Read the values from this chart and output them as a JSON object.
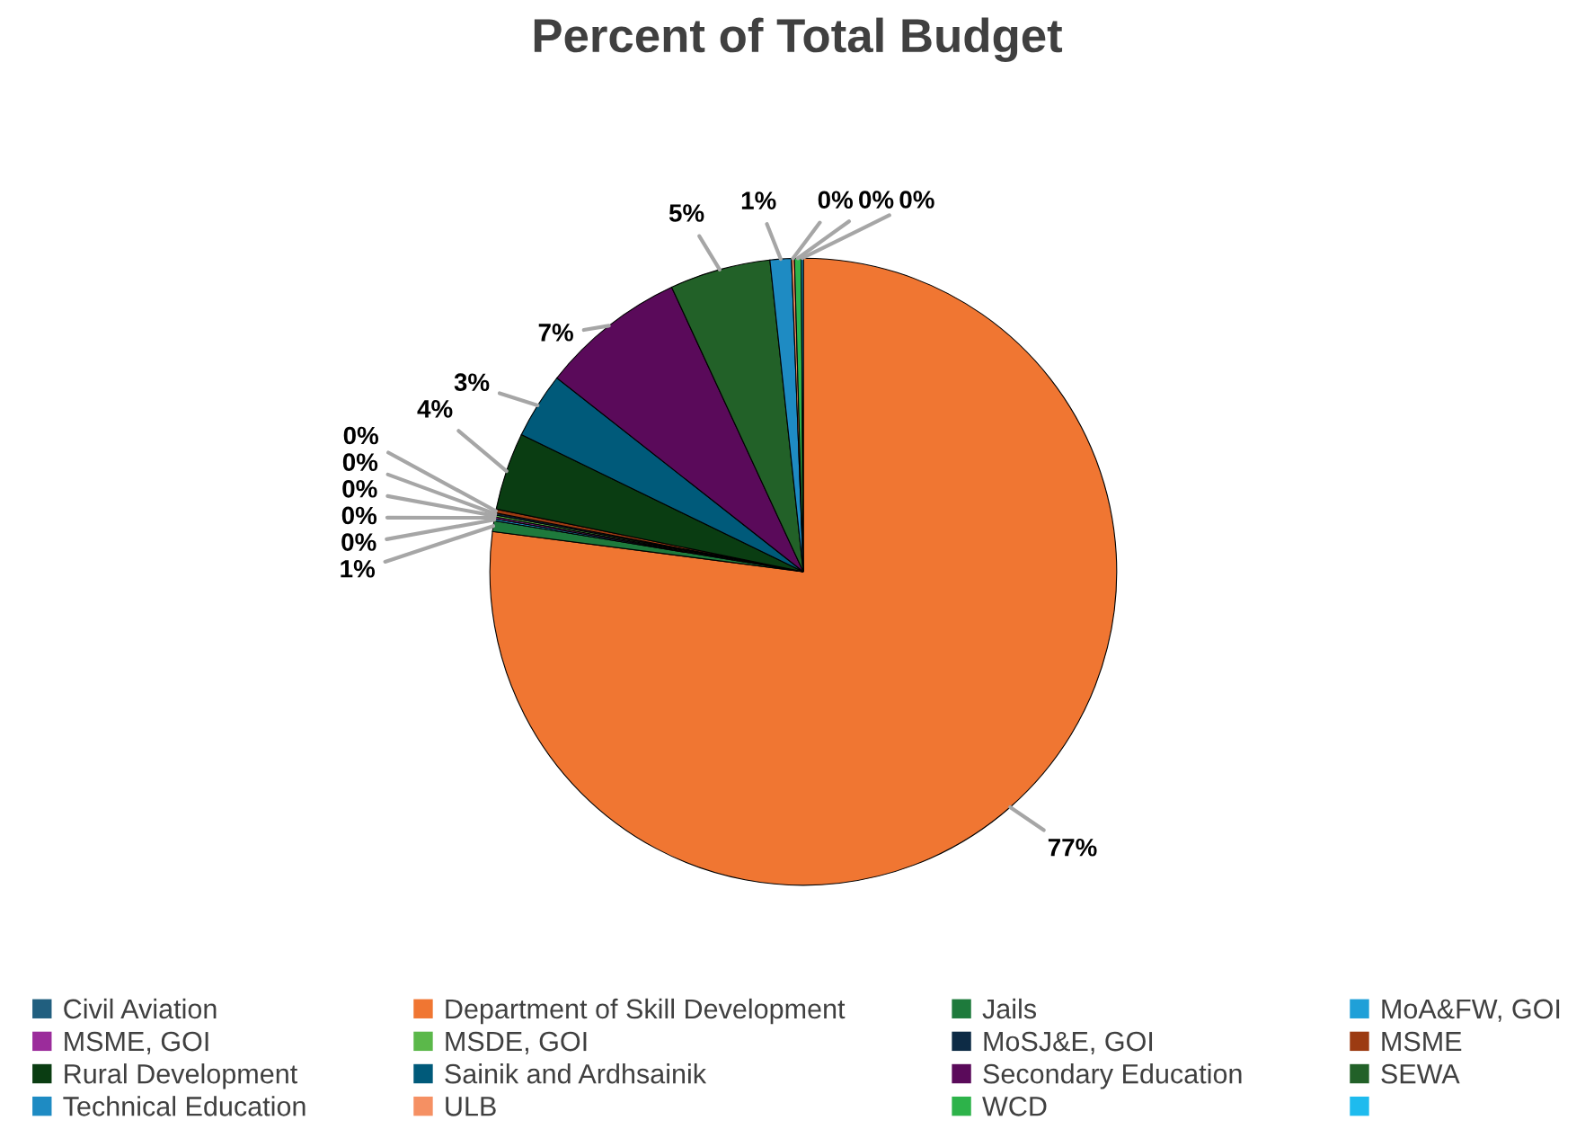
{
  "chart_data": {
    "type": "pie",
    "title": "Percent of Total Budget",
    "categories": [
      "Civil Aviation",
      "Department of Skill Development",
      "Jails",
      "MoA&FW, GOI",
      "MSME, GOI",
      "MSDE, GOI",
      "MoSJ&E, GOI",
      "MSME",
      "Rural Development",
      "Sainik and Ardhsainik",
      "Secondary Education",
      "SEWA",
      "Technical Education",
      "ULB",
      "WCD",
      null
    ],
    "values": [
      0,
      77.05,
      0.55,
      0.1,
      0.1,
      0.1,
      0.1,
      0.2,
      4.0,
      3.4,
      7.5,
      5.2,
      1.1,
      0.15,
      0.35,
      0.1
    ],
    "value_labels": [
      null,
      "77%",
      "1%",
      "0%",
      "0%",
      "0%",
      "0%",
      "0%",
      "4%",
      "3%",
      "7%",
      "5%",
      "1%",
      "0%",
      "0%",
      "0%"
    ],
    "colors": [
      "#215f7f",
      "#f07632",
      "#1e7a3c",
      "#1fa0d8",
      "#9b2c9b",
      "#5bb84a",
      "#0d2b45",
      "#9c3b12",
      "#0a3d12",
      "#005a7a",
      "#5a0a5a",
      "#226128",
      "#1e8bc3",
      "#f59063",
      "#2db34a",
      "#1ebbee"
    ],
    "legend": "bottom"
  }
}
